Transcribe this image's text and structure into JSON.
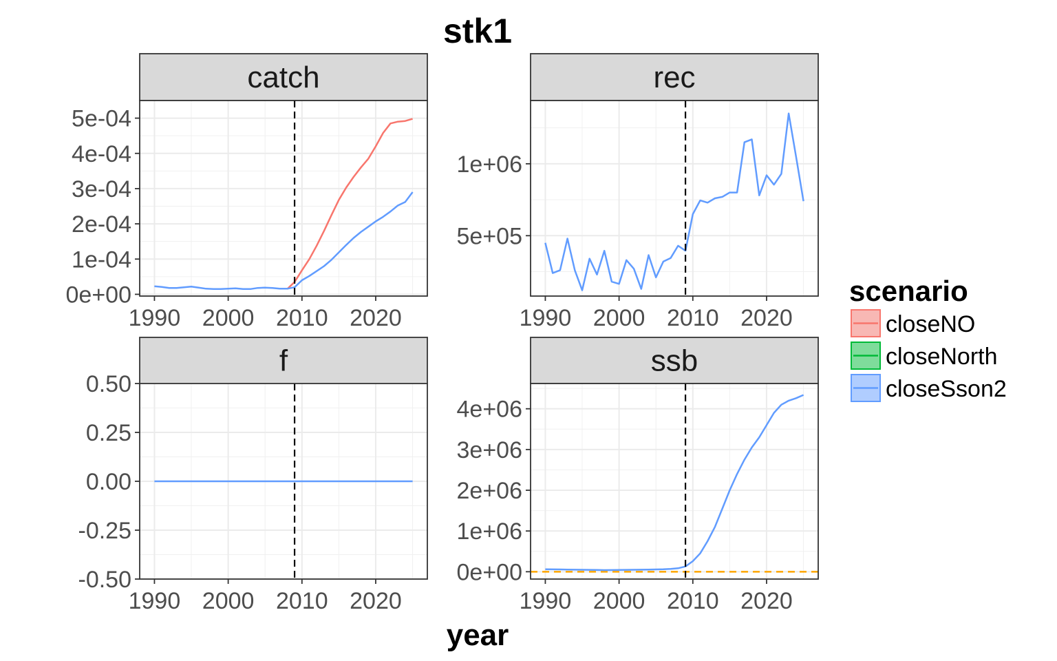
{
  "chart_data": {
    "type": "line",
    "title": "stk1",
    "xlabel": "year",
    "ylabel": "",
    "grid": true,
    "vline": 2009,
    "legend": {
      "title": "scenario",
      "position": "right",
      "entries": [
        {
          "name": "closeNO",
          "line": "#F8766D",
          "fill": "#F8B8B4"
        },
        {
          "name": "closeNorth",
          "line": "#00BA38",
          "fill": "#7FDC9B"
        },
        {
          "name": "closeSson2",
          "line": "#619CFF",
          "fill": "#B0CDFF"
        }
      ]
    },
    "panels": [
      {
        "name": "catch",
        "xlim": [
          1988,
          2027
        ],
        "ylim": [
          -5e-06,
          0.00055
        ],
        "xticks": [
          1990,
          2000,
          2010,
          2020
        ],
        "xtick_labels": [
          "1990",
          "2000",
          "2010",
          "2020"
        ],
        "yticks": [
          0,
          0.0001,
          0.0002,
          0.0003,
          0.0004,
          0.0005
        ],
        "ytick_labels": [
          "0e+00",
          "1e-04",
          "2e-04",
          "3e-04",
          "4e-04",
          "5e-04"
        ],
        "series": [
          {
            "name": "closeNO",
            "color": "#F8766D",
            "x": [
              2008,
              2009,
              2010,
              2011,
              2012,
              2013,
              2014,
              2015,
              2016,
              2017,
              2018,
              2019,
              2020,
              2021,
              2022,
              2023,
              2024,
              2025
            ],
            "y": [
              1.5e-05,
              3.5e-05,
              6.8e-05,
              0.0001,
              0.000138,
              0.00018,
              0.000225,
              0.000268,
              0.000303,
              0.000333,
              0.00036,
              0.000385,
              0.00042,
              0.000458,
              0.000485,
              0.00049,
              0.000492,
              0.000498
            ]
          },
          {
            "name": "closeSson2",
            "color": "#619CFF",
            "x": [
              1990,
              1991,
              1992,
              1993,
              1994,
              1995,
              1996,
              1997,
              1998,
              1999,
              2000,
              2001,
              2002,
              2003,
              2004,
              2005,
              2006,
              2007,
              2008,
              2009,
              2010,
              2011,
              2012,
              2013,
              2014,
              2015,
              2016,
              2017,
              2018,
              2019,
              2020,
              2021,
              2022,
              2023,
              2024,
              2025
            ],
            "y": [
              2.3e-05,
              2.1e-05,
              1.8e-05,
              1.8e-05,
              2e-05,
              2.2e-05,
              1.9e-05,
              1.6e-05,
              1.5e-05,
              1.5e-05,
              1.6e-05,
              1.7e-05,
              1.5e-05,
              1.5e-05,
              1.8e-05,
              1.9e-05,
              1.8e-05,
              1.6e-05,
              1.6e-05,
              2e-05,
              4e-05,
              5.2e-05,
              6.6e-05,
              8e-05,
              9.8e-05,
              0.000119,
              0.00014,
              0.00016,
              0.000177,
              0.000192,
              0.000207,
              0.00022,
              0.000235,
              0.000252,
              0.000262,
              0.00029
            ]
          }
        ]
      },
      {
        "name": "rec",
        "xlim": [
          1988,
          2027
        ],
        "ylim": [
          80000,
          1440000
        ],
        "xticks": [
          1990,
          2000,
          2010,
          2020
        ],
        "xtick_labels": [
          "1990",
          "2000",
          "2010",
          "2020"
        ],
        "yticks": [
          500000,
          1000000
        ],
        "ytick_labels": [
          "5e+05",
          "1e+06"
        ],
        "series": [
          {
            "name": "closeSson2",
            "color": "#619CFF",
            "x": [
              1990,
              1991,
              1992,
              1993,
              1994,
              1995,
              1996,
              1997,
              1998,
              1999,
              2000,
              2001,
              2002,
              2003,
              2004,
              2005,
              2006,
              2007,
              2008,
              2009,
              2010,
              2011,
              2012,
              2013,
              2014,
              2015,
              2016,
              2017,
              2018,
              2019,
              2020,
              2021,
              2022,
              2023,
              2024,
              2025
            ],
            "y": [
              450000,
              240000,
              260000,
              480000,
              260000,
              120000,
              340000,
              230000,
              395000,
              180000,
              165000,
              330000,
              270000,
              130000,
              365000,
              210000,
              320000,
              345000,
              430000,
              395000,
              650000,
              745000,
              730000,
              760000,
              770000,
              800000,
              800000,
              1150000,
              1170000,
              780000,
              920000,
              855000,
              930000,
              1350000,
              1050000,
              740000
            ]
          }
        ]
      },
      {
        "name": "f",
        "xlim": [
          1988,
          2027
        ],
        "ylim": [
          -0.5,
          0.5
        ],
        "xticks": [
          1990,
          2000,
          2010,
          2020
        ],
        "xtick_labels": [
          "1990",
          "2000",
          "2010",
          "2020"
        ],
        "yticks": [
          -0.5,
          -0.25,
          0,
          0.25,
          0.5
        ],
        "ytick_labels": [
          "-0.50",
          "-0.25",
          "0.00",
          "0.25",
          "0.50"
        ],
        "series": [
          {
            "name": "closeSson2",
            "color": "#619CFF",
            "x": [
              1990,
              2025
            ],
            "y": [
              0,
              0
            ]
          }
        ]
      },
      {
        "name": "ssb",
        "xlim": [
          1988,
          2027
        ],
        "ylim": [
          -180000,
          4620000
        ],
        "xticks": [
          1990,
          2000,
          2010,
          2020
        ],
        "xtick_labels": [
          "1990",
          "2000",
          "2010",
          "2020"
        ],
        "yticks": [
          0,
          1000000,
          2000000,
          3000000,
          4000000
        ],
        "ytick_labels": [
          "0e+00",
          "1e+06",
          "2e+06",
          "3e+06",
          "4e+06"
        ],
        "hline": 0,
        "series": [
          {
            "name": "closeSson2",
            "color": "#619CFF",
            "x": [
              1990,
              1991,
              1992,
              1993,
              1994,
              1995,
              1996,
              1997,
              1998,
              1999,
              2000,
              2001,
              2002,
              2003,
              2004,
              2005,
              2006,
              2007,
              2008,
              2009,
              2010,
              2011,
              2012,
              2013,
              2014,
              2015,
              2016,
              2017,
              2018,
              2019,
              2020,
              2021,
              2022,
              2023,
              2024,
              2025
            ],
            "y": [
              60000,
              58000,
              56000,
              52000,
              50000,
              48000,
              46000,
              45000,
              40000,
              42000,
              44000,
              46000,
              48000,
              50000,
              54000,
              56000,
              60000,
              70000,
              85000,
              130000,
              260000,
              450000,
              750000,
              1100000,
              1550000,
              2000000,
              2400000,
              2750000,
              3050000,
              3300000,
              3600000,
              3900000,
              4100000,
              4200000,
              4260000,
              4340000
            ]
          }
        ]
      }
    ]
  }
}
